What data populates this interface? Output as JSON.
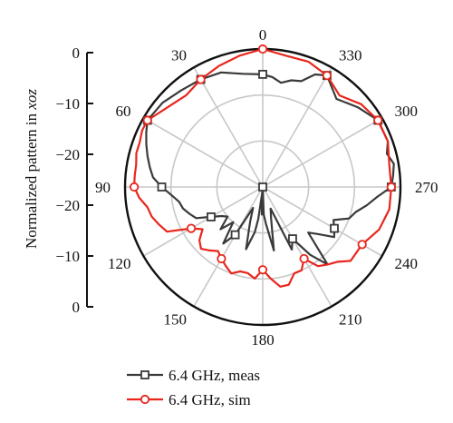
{
  "chart_data": {
    "type": "polar-line",
    "title": "",
    "ylabel": "Normalized pattern in xoz",
    "ylabel_main": "Normalized pattern in ",
    "ylabel_italic": "xoz",
    "r_ticks": [
      "0",
      "−10",
      "−20",
      "−20",
      "−10",
      "0"
    ],
    "r_range": [
      -30,
      0
    ],
    "angle_labels": [
      {
        "deg": 0,
        "text": "0"
      },
      {
        "deg": 30,
        "text": "30"
      },
      {
        "deg": 60,
        "text": "60"
      },
      {
        "deg": 90,
        "text": "90"
      },
      {
        "deg": 120,
        "text": "120"
      },
      {
        "deg": 150,
        "text": "150"
      },
      {
        "deg": 180,
        "text": "180"
      },
      {
        "deg": 210,
        "text": "210"
      },
      {
        "deg": 240,
        "text": "240"
      },
      {
        "deg": 270,
        "text": "270"
      },
      {
        "deg": 300,
        "text": "300"
      },
      {
        "deg": 330,
        "text": "330"
      }
    ],
    "angle_direction": "counterclockwise",
    "legend_position": "bottom",
    "grid": true,
    "series": [
      {
        "name": "6.4 GHz, meas",
        "color": "#3a3a3a",
        "marker": "square",
        "angles": [
          0,
          10,
          20,
          30,
          40,
          50,
          60,
          65,
          70,
          75,
          80,
          85,
          90,
          95,
          100,
          105,
          110,
          115,
          120,
          125,
          130,
          135,
          140,
          145,
          150,
          155,
          160,
          165,
          170,
          172,
          175,
          178,
          180,
          182,
          185,
          190,
          195,
          200,
          205,
          210,
          215,
          220,
          225,
          230,
          235,
          240,
          245,
          250,
          255,
          260,
          265,
          270,
          275,
          280,
          285,
          290,
          300,
          310,
          320,
          330,
          335,
          340,
          345,
          350,
          355
        ],
        "values": [
          -5.5,
          -5,
          -3.5,
          -3,
          -2.5,
          -1.5,
          -1,
          -2,
          -3,
          -4,
          -5,
          -6,
          -8,
          -10,
          -11.5,
          -12,
          -13,
          -14,
          -17,
          -19,
          -20,
          -17,
          -20,
          -15,
          -18,
          -25,
          -22,
          -16,
          -20,
          -23,
          -29,
          -24,
          -30,
          -24,
          -22,
          -16,
          -23,
          -25,
          -15,
          -17,
          -12,
          -8,
          -16,
          -14,
          -11,
          -12,
          -13,
          -10,
          -9,
          -7,
          -5,
          -2,
          -1.5,
          -1,
          -2,
          -1,
          -1,
          -3,
          -5,
          -2,
          -3,
          -5.5,
          -6,
          -7,
          -6
        ]
      },
      {
        "name": "6.4 GHz, sim",
        "color": "#e8261c",
        "marker": "circle",
        "angles": [
          0,
          10,
          20,
          30,
          40,
          50,
          60,
          65,
          70,
          75,
          80,
          85,
          90,
          95,
          100,
          105,
          110,
          115,
          120,
          125,
          130,
          135,
          140,
          145,
          150,
          155,
          160,
          165,
          170,
          175,
          180,
          185,
          190,
          195,
          200,
          205,
          210,
          215,
          220,
          225,
          230,
          240,
          250,
          260,
          270,
          280,
          290,
          300,
          310,
          320,
          330,
          340,
          350
        ],
        "values": [
          0,
          -1,
          -2,
          -3,
          -4,
          -3,
          -1,
          -1,
          -1.5,
          -1.5,
          -2,
          -2,
          -2,
          -3,
          -4.5,
          -5,
          -6,
          -7,
          -12,
          -14,
          -12,
          -11,
          -12,
          -13,
          -12,
          -11,
          -10,
          -11,
          -11,
          -10,
          -12,
          -10,
          -8,
          -8,
          -10,
          -10,
          -12,
          -9,
          -8,
          -7,
          -5,
          -5,
          -3,
          -2,
          -2,
          -2,
          -1,
          -1,
          -2,
          -4,
          -2,
          -1,
          -1
        ]
      }
    ],
    "marker_angles": {
      "meas": [
        0,
        30,
        60,
        90,
        120,
        150,
        180,
        210,
        240,
        270,
        300,
        330
      ],
      "sim": [
        0,
        30,
        60,
        90,
        120,
        150,
        180,
        210,
        240,
        270,
        300,
        330
      ]
    }
  }
}
